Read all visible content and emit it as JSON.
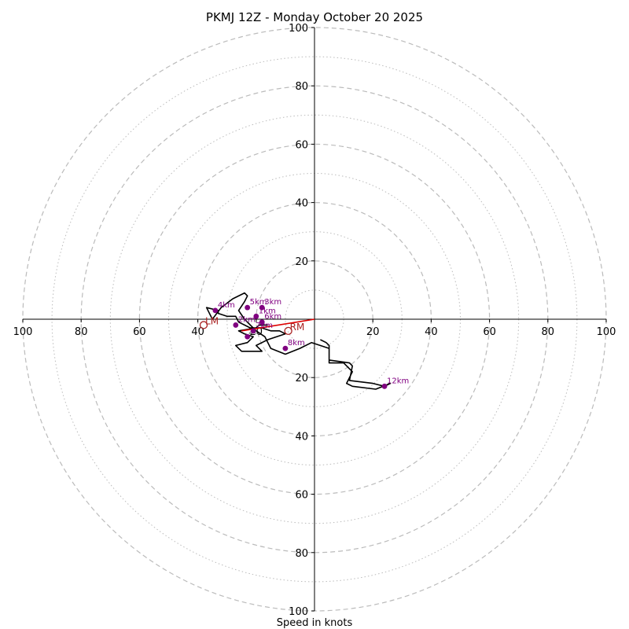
{
  "chart_data": {
    "type": "hodograph",
    "title": "PKMJ 12Z - Monday October 20 2025",
    "xlabel": "Speed in knots",
    "xlim": [
      -100,
      100
    ],
    "ylim": [
      -100,
      100
    ],
    "dashed_rings": [
      20,
      40,
      60,
      80,
      100
    ],
    "dotted_rings": [
      10,
      30,
      50,
      70,
      90
    ],
    "x_ticks": [
      "100",
      "80",
      "60",
      "40",
      "20",
      "20",
      "40",
      "60",
      "80",
      "100"
    ],
    "x_tick_values": [
      -100,
      -80,
      -60,
      -40,
      -20,
      20,
      40,
      60,
      80,
      100
    ],
    "y_ticks": [
      "100",
      "80",
      "60",
      "40",
      "20",
      "20",
      "40",
      "60",
      "80",
      "100"
    ],
    "y_tick_values": [
      100,
      80,
      60,
      40,
      20,
      -20,
      -40,
      -60,
      -80,
      -100
    ],
    "colors": {
      "trace": "#000000",
      "marker": "#800080",
      "shear": "#dd0000",
      "storm": "#aa2222",
      "ring": "#bbbbbb",
      "axis": "#000000"
    },
    "trace": [
      [
        2,
        -7
      ],
      [
        4,
        -8
      ],
      [
        5,
        -9
      ],
      [
        5,
        -14
      ],
      [
        12,
        -15
      ],
      [
        13,
        -16
      ],
      [
        12,
        -21
      ],
      [
        20,
        -22
      ],
      [
        24,
        -23
      ],
      [
        26,
        -22
      ],
      [
        21,
        -24
      ],
      [
        13,
        -23
      ],
      [
        11,
        -22
      ],
      [
        13,
        -18
      ],
      [
        10,
        -15
      ],
      [
        5,
        -15
      ],
      [
        5,
        -10
      ],
      [
        -1,
        -8
      ],
      [
        -5,
        -10
      ],
      [
        -10,
        -12
      ],
      [
        -15,
        -10
      ],
      [
        -17,
        -6
      ],
      [
        -20,
        -4
      ],
      [
        -22,
        -2
      ],
      [
        -24,
        0
      ],
      [
        -26,
        3
      ],
      [
        -24,
        6
      ],
      [
        -23,
        8
      ],
      [
        -24,
        9
      ],
      [
        -28,
        7
      ],
      [
        -32,
        4
      ],
      [
        -35,
        0
      ],
      [
        -37,
        4
      ],
      [
        -33,
        3
      ],
      [
        -33,
        2
      ],
      [
        -30,
        1
      ],
      [
        -27,
        1
      ],
      [
        -26,
        -1
      ],
      [
        -24,
        -2
      ],
      [
        -22,
        -3
      ],
      [
        -18,
        -3
      ],
      [
        -15,
        -4
      ],
      [
        -12,
        -4
      ],
      [
        -10,
        -5
      ],
      [
        -16,
        -7
      ],
      [
        -18,
        -8
      ],
      [
        -20,
        -9
      ],
      [
        -18,
        -11
      ],
      [
        -18,
        -11
      ],
      [
        -25,
        -11
      ],
      [
        -27,
        -9
      ],
      [
        -27,
        -9
      ],
      [
        -23,
        -8
      ],
      [
        -21,
        -6
      ],
      [
        -24,
        -5
      ],
      [
        -26,
        -4
      ],
      [
        -20,
        -3
      ],
      [
        -19,
        -2
      ],
      [
        -16,
        -2
      ]
    ],
    "height_markers": [
      {
        "label": "12km",
        "u": 24,
        "v": -23
      },
      {
        "label": "8km",
        "u": -10,
        "v": -10
      },
      {
        "label": "5km",
        "u": -23,
        "v": 4
      },
      {
        "label": "3km",
        "u": -18,
        "v": 4
      },
      {
        "label": "4km",
        "u": -34,
        "v": 3
      },
      {
        "label": "2km",
        "u": -27,
        "v": -2
      },
      {
        "label": "1km",
        "u": -20,
        "v": 1
      },
      {
        "label": "6km",
        "u": -18,
        "v": -1
      },
      {
        "label": "7km",
        "u": -21,
        "v": -4
      },
      {
        "label": "",
        "u": -23,
        "v": -6
      }
    ],
    "storm_motions": [
      {
        "label": "LM",
        "u": -38,
        "v": -2
      },
      {
        "label": "RM",
        "u": -9,
        "v": -4
      }
    ],
    "shear_vector": {
      "from": [
        -25,
        -4
      ],
      "to": [
        0,
        0
      ]
    }
  }
}
